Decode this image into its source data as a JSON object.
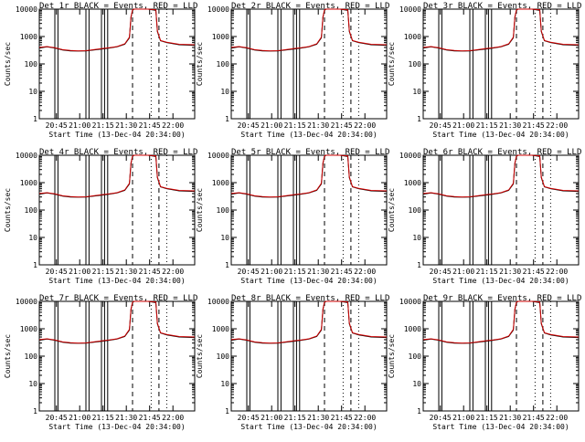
{
  "chart_data": [
    {
      "type": "line",
      "title": "Det 1r BLACK = Events, RED = LLD"
    },
    {
      "type": "line",
      "title": "Det 2r BLACK = Events, RED = LLD"
    },
    {
      "type": "line",
      "title": "Det 3r BLACK = Events, RED = LLD"
    },
    {
      "type": "line",
      "title": "Det 4r BLACK = Events, RED = LLD"
    },
    {
      "type": "line",
      "title": "Det 5r BLACK = Events, RED = LLD"
    },
    {
      "type": "line",
      "title": "Det 6r BLACK = Events, RED = LLD"
    },
    {
      "type": "line",
      "title": "Det 7r BLACK = Events, RED = LLD"
    },
    {
      "type": "line",
      "title": "Det 8r BLACK = Events, RED = LLD"
    },
    {
      "type": "line",
      "title": "Det 9r BLACK = Events, RED = LLD"
    }
  ],
  "shared": {
    "ylabel": "Counts/sec",
    "xlabel": "Start Time (13-Dec-04 20:34:00)",
    "y_scale": "log",
    "ylim": [
      1,
      10000
    ],
    "ytick_labels": [
      "1",
      "10",
      "100",
      "1000",
      "10000"
    ],
    "xlim_minutes": [
      0,
      100
    ],
    "xtick_minutes": [
      11,
      26,
      41,
      56,
      71,
      86
    ],
    "xtick_labels": [
      "20:45",
      "21:00",
      "21:15",
      "21:30",
      "21:45",
      "22:00"
    ],
    "solid_vlines_minutes": [
      10,
      12,
      30,
      32,
      40,
      42,
      44
    ],
    "dashed_vlines_minutes": [
      60,
      77
    ],
    "dotted_vlines_minutes": [
      72,
      82
    ],
    "series": [
      {
        "name": "Events",
        "color": "#000000",
        "points": [
          [
            0,
            380
          ],
          [
            5,
            420
          ],
          [
            10,
            380
          ],
          [
            15,
            320
          ],
          [
            20,
            300
          ],
          [
            25,
            295
          ],
          [
            30,
            300
          ],
          [
            35,
            320
          ],
          [
            40,
            350
          ],
          [
            45,
            380
          ],
          [
            50,
            420
          ],
          [
            55,
            520
          ],
          [
            58,
            900
          ],
          [
            59,
            5000
          ],
          [
            60,
            9000
          ],
          [
            61,
            10000
          ],
          [
            70,
            10000
          ],
          [
            75,
            9000
          ],
          [
            76,
            1500
          ],
          [
            78,
            700
          ],
          [
            82,
            600
          ],
          [
            90,
            500
          ],
          [
            100,
            480
          ]
        ]
      },
      {
        "name": "LLD",
        "color": "#cc0000",
        "points": [
          [
            0,
            400
          ],
          [
            5,
            430
          ],
          [
            10,
            390
          ],
          [
            15,
            330
          ],
          [
            20,
            310
          ],
          [
            25,
            300
          ],
          [
            30,
            305
          ],
          [
            35,
            330
          ],
          [
            40,
            360
          ],
          [
            45,
            390
          ],
          [
            50,
            430
          ],
          [
            55,
            540
          ],
          [
            58,
            950
          ],
          [
            59,
            5200
          ],
          [
            60,
            9500
          ],
          [
            61,
            10000
          ],
          [
            70,
            10000
          ],
          [
            75,
            9500
          ],
          [
            76,
            1600
          ],
          [
            78,
            720
          ],
          [
            82,
            620
          ],
          [
            90,
            520
          ],
          [
            100,
            500
          ]
        ]
      }
    ]
  }
}
